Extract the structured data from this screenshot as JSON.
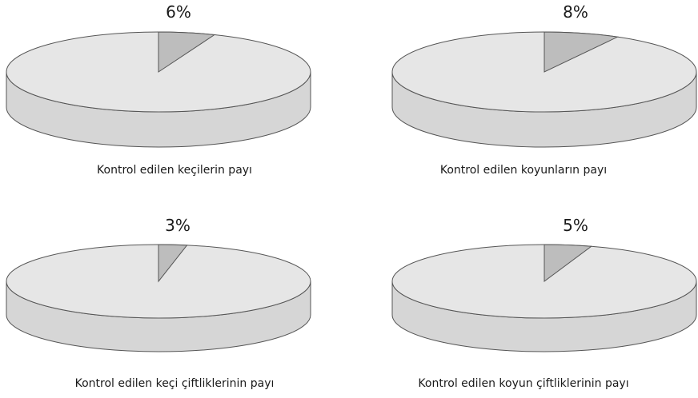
{
  "chart_data": [
    {
      "type": "pie",
      "title": "Kontrol edilen keçilerin payı",
      "values": [
        6,
        94
      ],
      "data_label": "6%",
      "colors": {
        "slice": "#bdbdbd",
        "rest": "#e6e6e6",
        "side": "#d6d6d6",
        "stroke": "#555555"
      }
    },
    {
      "type": "pie",
      "title": "Kontrol edilen koyunların payı",
      "values": [
        8,
        92
      ],
      "data_label": "8%",
      "colors": {
        "slice": "#bdbdbd",
        "rest": "#e6e6e6",
        "side": "#d6d6d6",
        "stroke": "#555555"
      }
    },
    {
      "type": "pie",
      "title": "Kontrol edilen keçi çiftliklerinin payı",
      "values": [
        3,
        97
      ],
      "data_label": "3%",
      "colors": {
        "slice": "#bdbdbd",
        "rest": "#e6e6e6",
        "side": "#d6d6d6",
        "stroke": "#555555"
      }
    },
    {
      "type": "pie",
      "title": "Kontrol edilen koyun çiftliklerinin payı",
      "values": [
        5,
        95
      ],
      "data_label": "5%",
      "colors": {
        "slice": "#bdbdbd",
        "rest": "#e6e6e6",
        "side": "#d6d6d6",
        "stroke": "#555555"
      }
    }
  ]
}
